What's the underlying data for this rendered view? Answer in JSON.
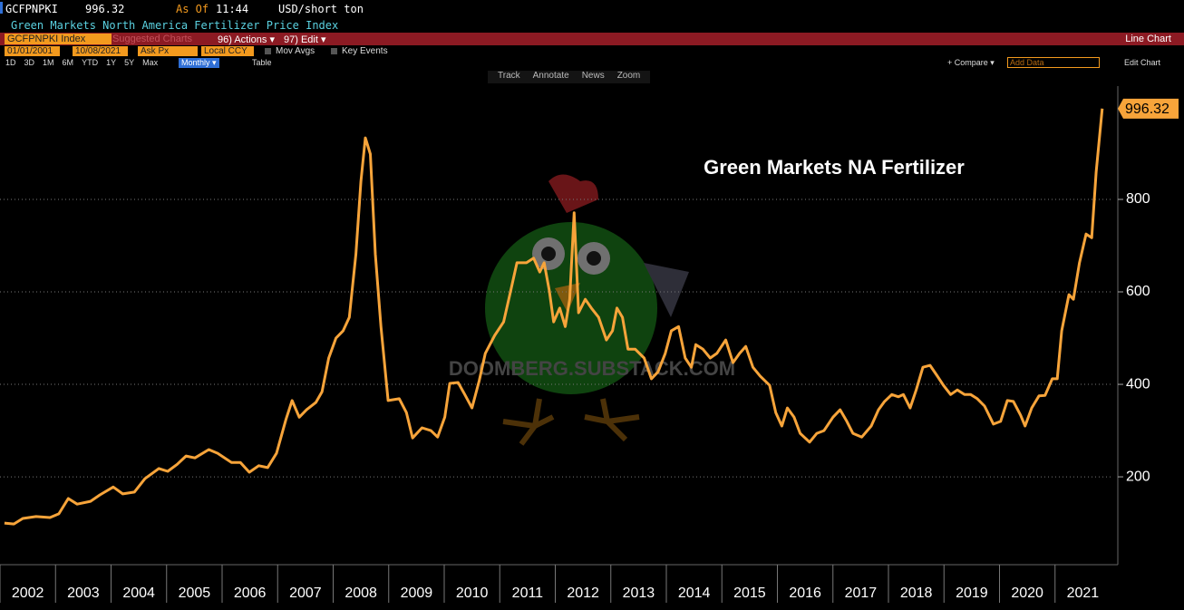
{
  "header": {
    "ticker": "GCFPNPKI",
    "as_of": "As Of",
    "time": "11:44",
    "units": "USD/short ton",
    "description": "Green Markets North America Fertilizer Price Index"
  },
  "menu": {
    "security": "GCFPNPKI Index",
    "suggested": "Suggested Charts",
    "actions": "96) Actions ▾",
    "edit": "97) Edit ▾",
    "chart_type": "Line Chart"
  },
  "settings": {
    "start": "01/01/2001",
    "end": "10/08/2021",
    "field": "Ask Px",
    "currency": "Local CCY",
    "mov_avgs": "Mov Avgs",
    "key_events": "Key Events"
  },
  "periods": [
    "1D",
    "3D",
    "1M",
    "6M",
    "YTD",
    "1Y",
    "5Y",
    "Max"
  ],
  "frequency": "Monthly ▾",
  "table": "Table",
  "compare": "+ Compare ▾",
  "add_data": "Add Data",
  "edit_chart": "Edit Chart",
  "tools": [
    "Track",
    "Annotate",
    "News",
    "Zoom"
  ],
  "chart_data": {
    "type": "line",
    "annotation": "Green Markets NA Fertilizer",
    "watermark": "DOOMBERG.SUBSTACK.COM",
    "color": "#f7a43a",
    "x": [
      2002.08,
      2002.25,
      2002.41,
      2002.65,
      2002.9,
      2003.06,
      2003.23,
      2003.39,
      2003.63,
      2003.8,
      2004.04,
      2004.21,
      2004.42,
      2004.61,
      2004.86,
      2005.02,
      2005.19,
      2005.35,
      2005.51,
      2005.76,
      2005.92,
      2006.17,
      2006.33,
      2006.49,
      2006.66,
      2006.82,
      2006.98,
      2007.15,
      2007.26,
      2007.39,
      2007.52,
      2007.69,
      2007.8,
      2007.92,
      2008.05,
      2008.18,
      2008.29,
      2008.41,
      2008.5,
      2008.58,
      2008.67,
      2008.76,
      2008.86,
      2008.99,
      2009.19,
      2009.32,
      2009.43,
      2009.6,
      2009.76,
      2009.88,
      2010.01,
      2010.1,
      2010.25,
      2010.37,
      2010.5,
      2010.63,
      2010.74,
      2010.91,
      2011.07,
      2011.2,
      2011.31,
      2011.48,
      2011.61,
      2011.72,
      2011.8,
      2011.89,
      2011.97,
      2012.08,
      2012.18,
      2012.26,
      2012.34,
      2012.42,
      2012.54,
      2012.65,
      2012.78,
      2012.92,
      2013.03,
      2013.11,
      2013.21,
      2013.31,
      2013.44,
      2013.6,
      2013.73,
      2013.85,
      2013.98,
      2014.09,
      2014.22,
      2014.34,
      2014.45,
      2014.53,
      2014.66,
      2014.79,
      2014.91,
      2015.07,
      2015.2,
      2015.32,
      2015.43,
      2015.56,
      2015.69,
      2015.86,
      2015.97,
      2016.08,
      2016.18,
      2016.3,
      2016.41,
      2016.58,
      2016.71,
      2016.84,
      2017.0,
      2017.13,
      2017.25,
      2017.36,
      2017.52,
      2017.69,
      2017.82,
      2017.93,
      2018.06,
      2018.18,
      2018.27,
      2018.39,
      2018.5,
      2018.62,
      2018.75,
      2018.88,
      2018.99,
      2019.12,
      2019.24,
      2019.37,
      2019.48,
      2019.6,
      2019.73,
      2019.89,
      2020.02,
      2020.14,
      2020.25,
      2020.38,
      2020.46,
      2020.58,
      2020.71,
      2020.82,
      2020.95,
      2021.04,
      2021.12,
      2021.25,
      2021.33,
      2021.44,
      2021.56,
      2021.66,
      2021.74,
      2021.85
    ],
    "values": [
      100,
      98,
      110,
      114,
      112,
      120,
      153,
      141,
      147,
      161,
      178,
      163,
      167,
      196,
      218,
      212,
      227,
      245,
      241,
      259,
      251,
      231,
      231,
      210,
      224,
      220,
      251,
      324,
      365,
      329,
      345,
      361,
      384,
      457,
      500,
      516,
      545,
      682,
      839,
      933,
      898,
      682,
      525,
      365,
      369,
      339,
      284,
      306,
      300,
      286,
      329,
      402,
      404,
      378,
      349,
      408,
      467,
      506,
      535,
      604,
      663,
      663,
      673,
      643,
      663,
      604,
      535,
      565,
      525,
      584,
      771,
      555,
      584,
      565,
      545,
      496,
      516,
      565,
      545,
      476,
      476,
      457,
      412,
      427,
      467,
      516,
      525,
      457,
      437,
      486,
      476,
      457,
      467,
      496,
      447,
      467,
      482,
      437,
      418,
      398,
      339,
      310,
      349,
      329,
      294,
      275,
      294,
      300,
      329,
      345,
      320,
      294,
      286,
      310,
      345,
      363,
      378,
      373,
      378,
      349,
      388,
      437,
      441,
      418,
      398,
      378,
      388,
      378,
      378,
      369,
      353,
      314,
      320,
      365,
      363,
      333,
      310,
      349,
      375,
      376,
      412,
      412,
      516,
      594,
      584,
      663,
      725,
      717,
      859,
      996.32
    ],
    "xlim": [
      2002,
      2022
    ],
    "xticks": [
      2002,
      2003,
      2004,
      2005,
      2006,
      2007,
      2008,
      2009,
      2010,
      2011,
      2012,
      2013,
      2014,
      2015,
      2016,
      2017,
      2018,
      2019,
      2020,
      2021
    ],
    "ylim": [
      10,
      1045
    ],
    "yticks": [
      200,
      400,
      600,
      800
    ],
    "grid": true
  }
}
